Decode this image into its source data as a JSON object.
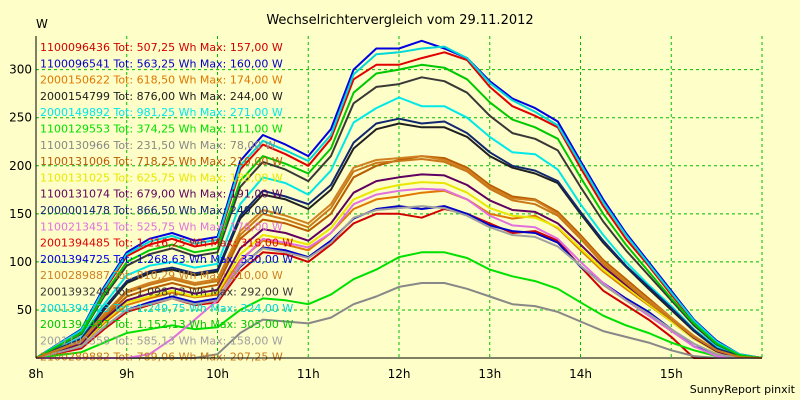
{
  "chart_data": {
    "type": "line",
    "title": "Wechselrichtervergleich vom 29.11.2012",
    "ylabel": "W",
    "xlabel": "",
    "x_ticks": [
      "8h",
      "9h",
      "10h",
      "11h",
      "12h",
      "13h",
      "14h",
      "15h"
    ],
    "y_ticks": [
      50,
      100,
      150,
      200,
      250,
      300
    ],
    "xlim": [
      8,
      16
    ],
    "ylim": [
      0,
      335
    ],
    "grid": true,
    "legend_position": "top-left",
    "credit": "SunnyReport pinxit",
    "x": [
      8.0,
      8.5,
      8.75,
      9.0,
      9.25,
      9.5,
      9.75,
      10.0,
      10.25,
      10.5,
      10.75,
      11.0,
      11.25,
      11.5,
      11.75,
      12.0,
      12.25,
      12.5,
      12.75,
      13.0,
      13.25,
      13.5,
      13.75,
      14.0,
      14.25,
      14.5,
      14.75,
      15.0,
      15.25,
      15.5,
      15.75,
      16.0
    ],
    "series": [
      {
        "name": "1100096436 Tot: 507,25 Wh Max: 157,00 W",
        "color": "#d00000",
        "values": [
          0,
          10,
          30,
          48,
          55,
          62,
          55,
          58,
          90,
          110,
          108,
          100,
          118,
          140,
          150,
          150,
          146,
          155,
          150,
          140,
          130,
          132,
          122,
          95,
          70,
          55,
          40,
          22,
          0,
          0,
          0,
          0
        ]
      },
      {
        "name": "1100096541 Tot: 563,25 Wh Max: 160,00 W",
        "color": "#0000c8",
        "values": [
          0,
          12,
          32,
          50,
          58,
          64,
          58,
          62,
          95,
          115,
          112,
          105,
          122,
          145,
          155,
          158,
          155,
          158,
          150,
          138,
          132,
          130,
          120,
          95,
          78,
          62,
          48,
          30,
          12,
          4,
          0,
          0
        ]
      },
      {
        "name": "2000150622 Tot: 618,50 Wh Max: 174,00 W",
        "color": "#e07800",
        "values": [
          0,
          14,
          36,
          55,
          62,
          68,
          63,
          66,
          102,
          122,
          118,
          112,
          130,
          155,
          165,
          168,
          172,
          174,
          165,
          150,
          145,
          148,
          135,
          112,
          90,
          72,
          55,
          38,
          20,
          6,
          0,
          0
        ]
      },
      {
        "name": "2000154799 Tot: 876,00 Wh Max: 244,00 W",
        "color": "#202020",
        "values": [
          0,
          20,
          50,
          78,
          88,
          92,
          86,
          90,
          145,
          170,
          165,
          155,
          175,
          218,
          238,
          244,
          240,
          240,
          230,
          210,
          198,
          192,
          182,
          150,
          120,
          95,
          72,
          50,
          28,
          10,
          2,
          0
        ]
      },
      {
        "name": "2000149892 Tot: 981,25 Wh Max: 271,00 W",
        "color": "#00e8e8",
        "values": [
          0,
          22,
          56,
          86,
          96,
          100,
          94,
          98,
          160,
          188,
          182,
          170,
          195,
          245,
          260,
          271,
          262,
          262,
          250,
          230,
          214,
          212,
          196,
          160,
          128,
          100,
          76,
          54,
          30,
          12,
          2,
          0
        ]
      },
      {
        "name": "1100129553 Tot: 374,25 Wh Max: 111,00 W",
        "color": "#00e000",
        "values": [
          0,
          6,
          16,
          26,
          30,
          34,
          30,
          32,
          50,
          62,
          60,
          56,
          66,
          82,
          92,
          105,
          110,
          110,
          104,
          92,
          85,
          80,
          72,
          58,
          44,
          34,
          26,
          16,
          8,
          2,
          0,
          0
        ]
      },
      {
        "name": "1100130966 Tot: 231,50 Wh Max: 78,00 W",
        "color": "#888888",
        "values": [
          0,
          0,
          0,
          0,
          0,
          0,
          0,
          4,
          26,
          40,
          38,
          36,
          42,
          56,
          64,
          74,
          78,
          78,
          72,
          64,
          56,
          54,
          48,
          38,
          28,
          22,
          16,
          8,
          2,
          0,
          0,
          0
        ]
      },
      {
        "name": "1100131006 Tot: 718,25 Wh Max: 210,00 W",
        "color": "#b85c00",
        "values": [
          0,
          16,
          42,
          64,
          72,
          78,
          72,
          76,
          124,
          144,
          140,
          132,
          150,
          188,
          200,
          206,
          210,
          208,
          198,
          180,
          168,
          165,
          152,
          128,
          102,
          82,
          62,
          42,
          22,
          8,
          0,
          0
        ]
      },
      {
        "name": "1100131025 Tot: 625,75 Wh Max: 183,00 W",
        "color": "#e8e800",
        "values": [
          0,
          14,
          38,
          58,
          64,
          70,
          64,
          68,
          108,
          128,
          124,
          118,
          135,
          165,
          175,
          180,
          183,
          182,
          172,
          156,
          148,
          146,
          136,
          114,
          92,
          74,
          56,
          38,
          20,
          6,
          0,
          0
        ]
      },
      {
        "name": "1100131074 Tot: 679,00 Wh Max: 191,00 W",
        "color": "#600060",
        "values": [
          0,
          15,
          40,
          60,
          67,
          73,
          67,
          71,
          114,
          134,
          130,
          122,
          140,
          172,
          184,
          188,
          191,
          190,
          180,
          164,
          154,
          152,
          140,
          118,
          95,
          76,
          58,
          40,
          21,
          7,
          0,
          0
        ]
      },
      {
        "name": "2000001478 Tot: 866,50 Wh Max: 249,00 W",
        "color": "#102870",
        "values": [
          0,
          20,
          52,
          80,
          90,
          94,
          88,
          92,
          148,
          174,
          168,
          160,
          180,
          224,
          244,
          249,
          244,
          246,
          234,
          214,
          200,
          195,
          184,
          152,
          122,
          96,
          74,
          52,
          29,
          10,
          2,
          0
        ]
      },
      {
        "name": "1100213451 Tot: 525,75 Wh Max: 176,00 W",
        "color": "#e070e0",
        "values": [
          0,
          0,
          0,
          0,
          4,
          20,
          40,
          60,
          100,
          124,
          120,
          115,
          130,
          160,
          170,
          174,
          176,
          175,
          165,
          148,
          138,
          136,
          124,
          100,
          78,
          60,
          44,
          28,
          12,
          2,
          0,
          0
        ]
      },
      {
        "name": "2001394485 Tot: 1.216,25 Wh Max: 318,00 W",
        "color": "#e00000",
        "values": [
          0,
          28,
          70,
          106,
          118,
          124,
          116,
          120,
          196,
          222,
          212,
          200,
          228,
          290,
          305,
          305,
          312,
          318,
          310,
          282,
          262,
          252,
          240,
          198,
          158,
          124,
          96,
          66,
          38,
          16,
          4,
          0
        ]
      },
      {
        "name": "2001394725 Tot: 1.268,63 Wh Max: 330,00 W",
        "color": "#0000e0",
        "values": [
          0,
          30,
          74,
          110,
          124,
          130,
          122,
          126,
          205,
          232,
          222,
          210,
          238,
          300,
          322,
          322,
          330,
          322,
          312,
          288,
          270,
          260,
          246,
          205,
          165,
          130,
          100,
          70,
          40,
          18,
          4,
          0
        ]
      },
      {
        "name": "2100289887 Tot: 810,29 Wh Max: 210,00 W",
        "color": "#d08020",
        "values": [
          0,
          18,
          46,
          70,
          78,
          84,
          78,
          82,
          132,
          154,
          148,
          140,
          160,
          198,
          206,
          208,
          210,
          206,
          196,
          178,
          166,
          164,
          150,
          126,
          100,
          80,
          60,
          42,
          23,
          8,
          1,
          0
        ]
      },
      {
        "name": "2001393249 Tot: 1.098,13 Wh Max: 292,00 W",
        "color": "#383838",
        "values": [
          0,
          25,
          64,
          96,
          108,
          114,
          106,
          110,
          178,
          204,
          196,
          184,
          210,
          265,
          282,
          285,
          292,
          288,
          276,
          252,
          234,
          228,
          216,
          178,
          142,
          112,
          86,
          60,
          34,
          14,
          3,
          0
        ]
      },
      {
        "name": "2001394723 Tot: 1.249,75 Wh Max: 324,00 W",
        "color": "#00d8d8",
        "values": [
          0,
          29,
          72,
          108,
          121,
          127,
          119,
          123,
          200,
          226,
          216,
          205,
          232,
          295,
          316,
          318,
          322,
          324,
          312,
          286,
          268,
          256,
          242,
          202,
          162,
          128,
          98,
          68,
          39,
          17,
          4,
          0
        ]
      },
      {
        "name": "2001394487 Tot: 1.152,13 Wh Max: 305,00 W",
        "color": "#00c800",
        "values": [
          0,
          26,
          66,
          100,
          112,
          118,
          110,
          114,
          184,
          210,
          202,
          192,
          218,
          276,
          296,
          300,
          305,
          302,
          290,
          266,
          248,
          240,
          228,
          188,
          150,
          118,
          90,
          62,
          36,
          15,
          3,
          0
        ]
      },
      {
        "name": "2001102358 Tot: 585,13 Wh Max: 158,00 W",
        "color": "#a0a0a0",
        "values": [
          0,
          12,
          32,
          50,
          56,
          62,
          56,
          60,
          96,
          114,
          110,
          104,
          120,
          146,
          154,
          156,
          158,
          156,
          148,
          136,
          128,
          126,
          116,
          96,
          76,
          60,
          46,
          30,
          15,
          4,
          0,
          0
        ]
      },
      {
        "name": "2100289882 Tot: 789,06 Wh Max: 207,25 W",
        "color": "#c87818",
        "values": [
          0,
          17,
          44,
          68,
          76,
          82,
          76,
          80,
          128,
          150,
          144,
          136,
          156,
          194,
          203,
          205,
          207,
          204,
          194,
          176,
          164,
          160,
          148,
          124,
          98,
          78,
          58,
          40,
          22,
          8,
          1,
          0
        ]
      }
    ]
  }
}
